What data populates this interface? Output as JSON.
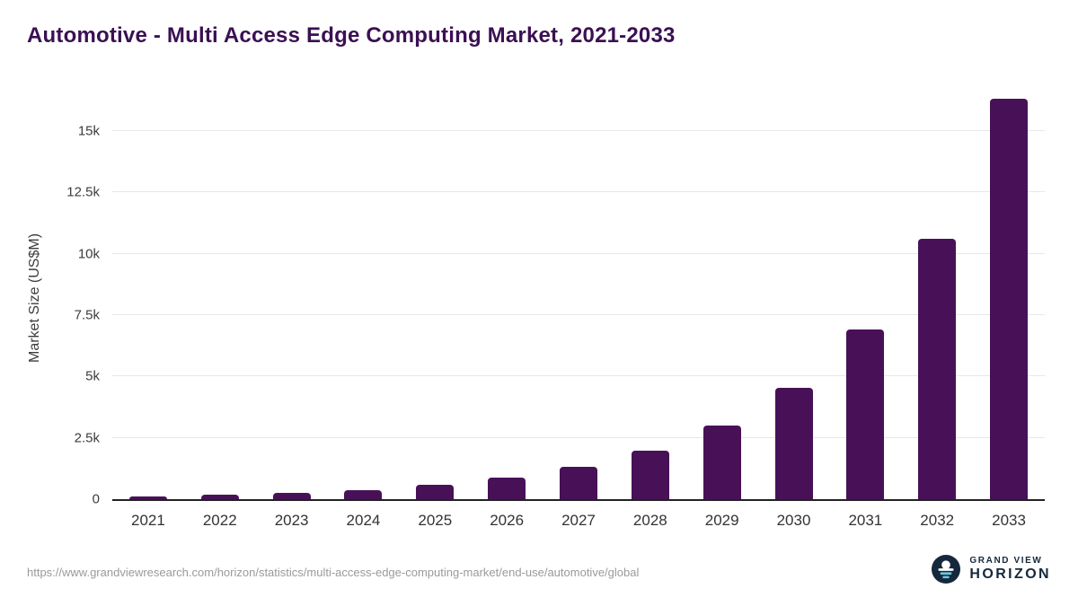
{
  "title": "Automotive - Multi Access Edge Computing Market, 2021-2033",
  "chart_data": {
    "type": "bar",
    "title": "Automotive - Multi Access Edge Computing Market, 2021-2033",
    "categories": [
      "2021",
      "2022",
      "2023",
      "2024",
      "2025",
      "2026",
      "2027",
      "2028",
      "2029",
      "2030",
      "2031",
      "2032",
      "2033"
    ],
    "values": [
      110,
      170,
      250,
      370,
      580,
      880,
      1320,
      1980,
      3010,
      4550,
      6900,
      10600,
      16300
    ],
    "xlabel": "",
    "ylabel": "Market Size (US$M)",
    "ylim": [
      0,
      16500
    ],
    "yticks": [
      0,
      2500,
      5000,
      7500,
      10000,
      12500,
      15000
    ],
    "ytick_labels": [
      "0",
      "2.5k",
      "5k",
      "7.5k",
      "10k",
      "12.5k",
      "15k"
    ],
    "grid": true,
    "legend": "none",
    "bar_color": "#481157"
  },
  "colors": {
    "title": "#3b1053",
    "bar": "#481157",
    "gridline": "#e7e7e7",
    "axis_text": "#3c3c3c",
    "source_text": "#9a9a9a",
    "logo_navy": "#16283c",
    "logo_blue": "#6cc7de"
  },
  "footer": {
    "source_url": "https://www.grandviewresearch.com/horizon/statistics/multi-access-edge-computing-market/end-use/automotive/global",
    "logo_line1": "GRAND VIEW",
    "logo_line2": "HORIZON"
  }
}
